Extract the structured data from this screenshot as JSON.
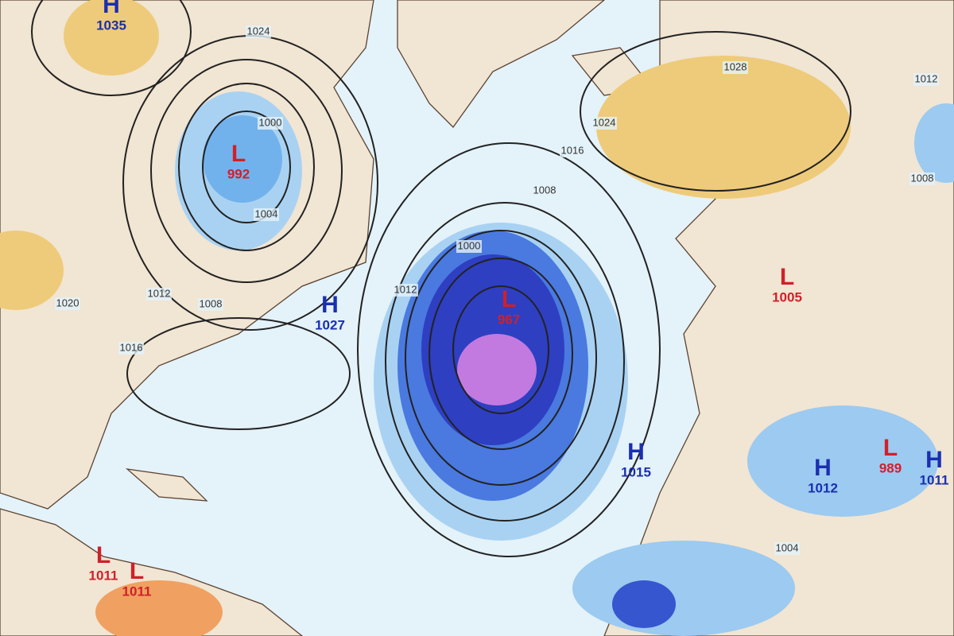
{
  "centers": [
    {
      "symbol": "H",
      "pressure": 1035
    },
    {
      "symbol": "L",
      "pressure": 992
    },
    {
      "symbol": "H",
      "pressure": 1027
    },
    {
      "symbol": "L",
      "pressure": 967
    },
    {
      "symbol": "L",
      "pressure": 1005
    },
    {
      "symbol": "H",
      "pressure": 1015
    },
    {
      "symbol": "H",
      "pressure": 1012
    },
    {
      "symbol": "L",
      "pressure": 989
    },
    {
      "symbol": "H",
      "pressure": 1011
    },
    {
      "symbol": "L",
      "pressure": 1011
    },
    {
      "symbol": "L",
      "pressure": 1011
    }
  ],
  "isobar_labels": [
    1024,
    1000,
    1004,
    1012,
    1020,
    1008,
    1016,
    1012,
    1000,
    1008,
    1016,
    1024,
    1028,
    1012,
    1004,
    1008
  ]
}
